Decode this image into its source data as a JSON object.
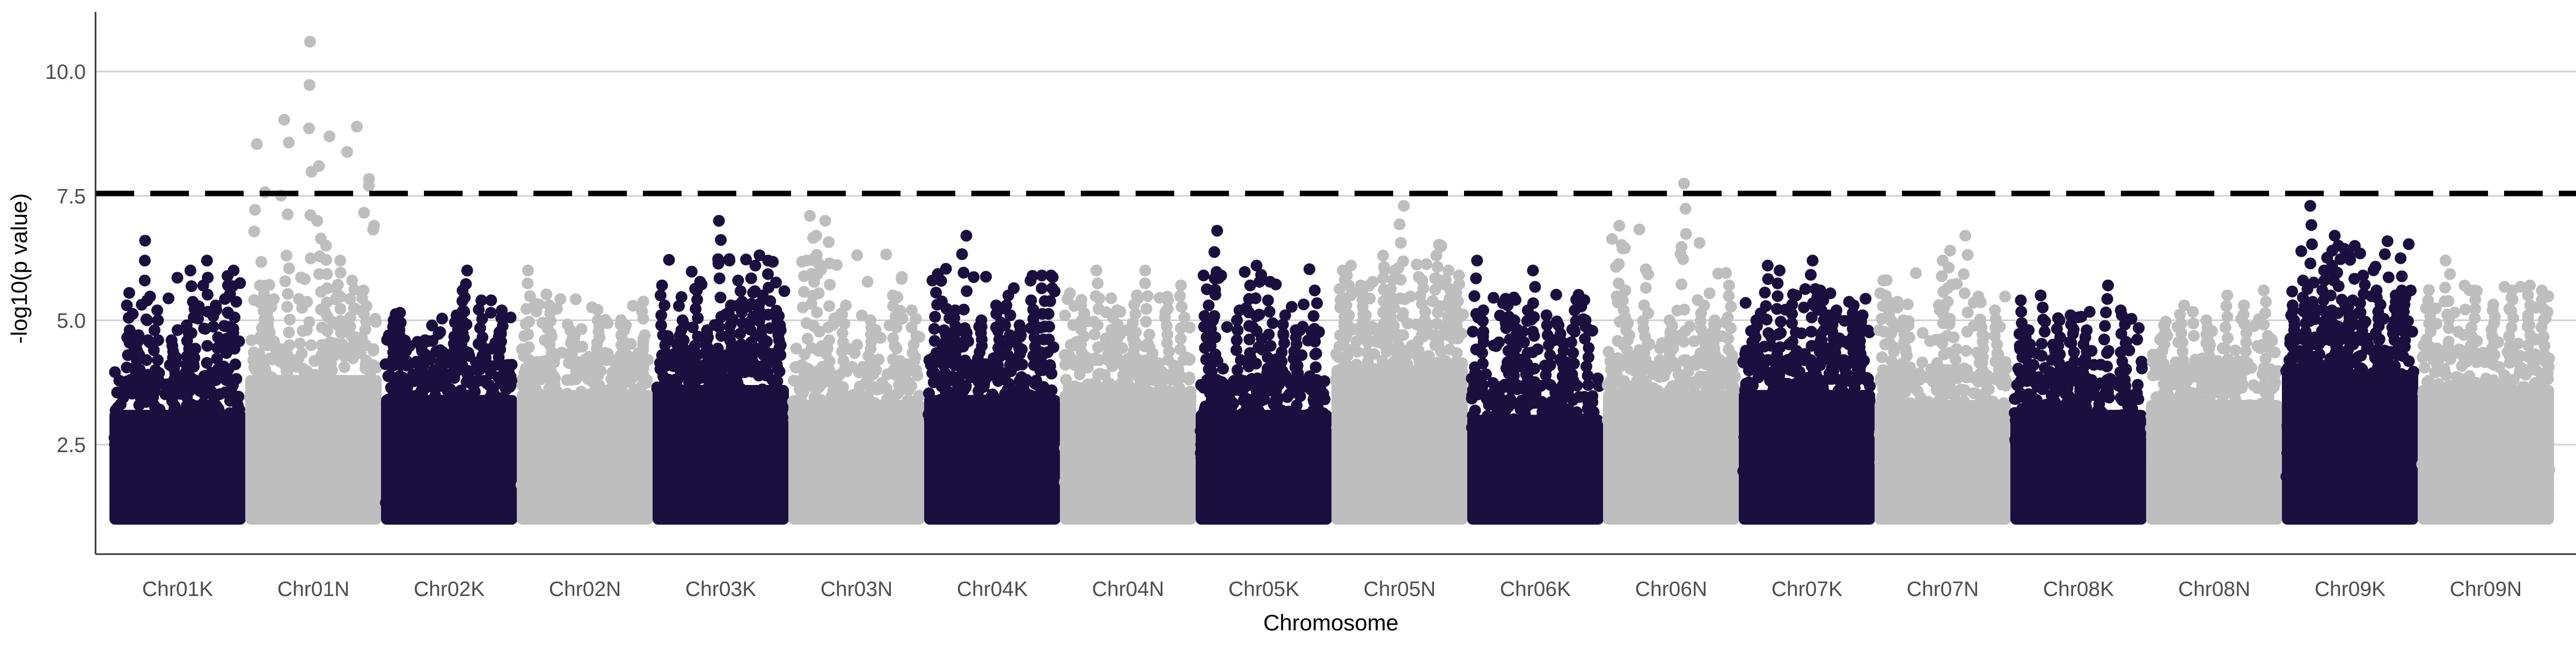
{
  "chart_data": {
    "type": "scatter",
    "subtype": "manhattan",
    "xlabel": "Chromosome",
    "ylabel": "-log10(p value)",
    "ylim": [
      0.3,
      11.2
    ],
    "yticks": [
      2.5,
      5.0,
      7.5,
      10.0
    ],
    "ytick_labels": [
      "2.5",
      "5.0",
      "7.5",
      "10.0"
    ],
    "categories": [
      "Chr01K",
      "Chr01N",
      "Chr02K",
      "Chr02N",
      "Chr03K",
      "Chr03N",
      "Chr04K",
      "Chr04N",
      "Chr05K",
      "Chr05N",
      "Chr06K",
      "Chr06N",
      "Chr07K",
      "Chr07N",
      "Chr08K",
      "Chr08N",
      "Chr09K",
      "Chr09N"
    ],
    "threshold": 7.55,
    "grid": "horizontal major",
    "legend": "none",
    "colors": {
      "K": "#1b0f40",
      "N": "#bebebe",
      "threshold": "#000000",
      "grid": "#d0d0d0"
    },
    "series": [
      {
        "chromosome": "Chr01K",
        "color": "K",
        "dense_top": 3.8,
        "max": 6.6,
        "peaks": [
          [
            0.12,
            5.55
          ],
          [
            0.18,
            4.7
          ],
          [
            0.25,
            6.6
          ],
          [
            0.33,
            5.2
          ],
          [
            0.47,
            4.6
          ],
          [
            0.58,
            4.9
          ],
          [
            0.62,
            6.0
          ],
          [
            0.72,
            6.2
          ],
          [
            0.8,
            5.3
          ],
          [
            0.88,
            5.7
          ],
          [
            0.95,
            6.0
          ]
        ]
      },
      {
        "chromosome": "Chr01N",
        "color": "N",
        "dense_top": 4.5,
        "max": 10.6,
        "peaks": [
          [
            0.1,
            5.7
          ],
          [
            0.15,
            5.4
          ],
          [
            0.3,
            6.3
          ],
          [
            0.47,
            10.6
          ],
          [
            0.55,
            7.0
          ],
          [
            0.6,
            6.5
          ],
          [
            0.7,
            6.2
          ],
          [
            0.8,
            5.8
          ],
          [
            0.9,
            5.6
          ]
        ]
      },
      {
        "chromosome": "Chr02K",
        "color": "K",
        "dense_top": 4.1,
        "max": 6.0,
        "peaks": [
          [
            0.05,
            5.0
          ],
          [
            0.12,
            4.8
          ],
          [
            0.3,
            4.6
          ],
          [
            0.45,
            4.4
          ],
          [
            0.55,
            5.1
          ],
          [
            0.6,
            5.6
          ],
          [
            0.62,
            6.0
          ],
          [
            0.75,
            5.4
          ],
          [
            0.9,
            5.2
          ]
        ]
      },
      {
        "chromosome": "Chr02N",
        "color": "N",
        "dense_top": 4.2,
        "max": 6.0,
        "peaks": [
          [
            0.05,
            6.0
          ],
          [
            0.22,
            5.3
          ],
          [
            0.4,
            4.8
          ],
          [
            0.6,
            5.0
          ],
          [
            0.8,
            4.9
          ],
          [
            0.95,
            4.7
          ]
        ]
      },
      {
        "chromosome": "Chr03K",
        "color": "K",
        "dense_top": 4.3,
        "max": 7.0,
        "peaks": [
          [
            0.05,
            5.7
          ],
          [
            0.2,
            5.0
          ],
          [
            0.3,
            5.6
          ],
          [
            0.38,
            4.8
          ],
          [
            0.5,
            7.0
          ],
          [
            0.58,
            5.3
          ],
          [
            0.65,
            5.8
          ],
          [
            0.75,
            6.1
          ],
          [
            0.82,
            5.5
          ],
          [
            0.88,
            6.2
          ],
          [
            0.95,
            5.0
          ]
        ]
      },
      {
        "chromosome": "Chr03N",
        "color": "N",
        "dense_top": 4.0,
        "max": 7.1,
        "peaks": [
          [
            0.1,
            6.2
          ],
          [
            0.15,
            7.1
          ],
          [
            0.2,
            6.7
          ],
          [
            0.27,
            7.0
          ],
          [
            0.4,
            5.3
          ],
          [
            0.6,
            5.0
          ],
          [
            0.8,
            5.5
          ],
          [
            0.95,
            5.2
          ]
        ]
      },
      {
        "chromosome": "Chr04K",
        "color": "K",
        "dense_top": 4.1,
        "max": 6.7,
        "peaks": [
          [
            0.05,
            5.8
          ],
          [
            0.12,
            4.8
          ],
          [
            0.2,
            5.2
          ],
          [
            0.28,
            6.7
          ],
          [
            0.4,
            5.0
          ],
          [
            0.55,
            5.3
          ],
          [
            0.62,
            5.5
          ],
          [
            0.7,
            4.9
          ],
          [
            0.82,
            5.4
          ],
          [
            0.9,
            5.9
          ],
          [
            0.95,
            5.9
          ]
        ]
      },
      {
        "chromosome": "Chr04N",
        "color": "N",
        "dense_top": 4.2,
        "max": 6.0,
        "peaks": [
          [
            0.15,
            5.3
          ],
          [
            0.25,
            6.0
          ],
          [
            0.4,
            5.2
          ],
          [
            0.55,
            5.5
          ],
          [
            0.65,
            6.0
          ],
          [
            0.8,
            5.4
          ],
          [
            0.92,
            5.7
          ]
        ]
      },
      {
        "chromosome": "Chr05K",
        "color": "K",
        "dense_top": 3.8,
        "max": 6.8,
        "peaks": [
          [
            0.05,
            5.3
          ],
          [
            0.1,
            5.0
          ],
          [
            0.12,
            6.8
          ],
          [
            0.3,
            5.2
          ],
          [
            0.4,
            5.7
          ],
          [
            0.45,
            6.1
          ],
          [
            0.55,
            5.4
          ],
          [
            0.65,
            5.1
          ],
          [
            0.75,
            4.8
          ],
          [
            0.9,
            5.6
          ]
        ]
      },
      {
        "chromosome": "Chr05N",
        "color": "N",
        "dense_top": 4.7,
        "max": 7.3,
        "peaks": [
          [
            0.05,
            6.0
          ],
          [
            0.1,
            6.1
          ],
          [
            0.2,
            5.7
          ],
          [
            0.38,
            6.3
          ],
          [
            0.45,
            6.0
          ],
          [
            0.52,
            7.3
          ],
          [
            0.68,
            5.8
          ],
          [
            0.78,
            6.3
          ],
          [
            0.88,
            6.0
          ],
          [
            0.95,
            5.9
          ]
        ]
      },
      {
        "chromosome": "Chr06K",
        "color": "K",
        "dense_top": 3.7,
        "max": 6.2,
        "peaks": [
          [
            0.03,
            6.2
          ],
          [
            0.1,
            5.2
          ],
          [
            0.28,
            5.3
          ],
          [
            0.35,
            5.0
          ],
          [
            0.42,
            5.2
          ],
          [
            0.48,
            6.0
          ],
          [
            0.6,
            5.1
          ],
          [
            0.7,
            4.9
          ],
          [
            0.8,
            5.2
          ],
          [
            0.9,
            5.0
          ]
        ]
      },
      {
        "chromosome": "Chr06N",
        "color": "N",
        "dense_top": 4.2,
        "max": 7.75,
        "peaks": [
          [
            0.1,
            6.9
          ],
          [
            0.14,
            5.6
          ],
          [
            0.3,
            5.3
          ],
          [
            0.5,
            5.0
          ],
          [
            0.6,
            7.75
          ],
          [
            0.75,
            5.3
          ],
          [
            0.85,
            5.0
          ],
          [
            0.95,
            5.7
          ]
        ]
      },
      {
        "chromosome": "Chr07K",
        "color": "K",
        "dense_top": 4.2,
        "max": 6.2,
        "peaks": [
          [
            0.1,
            5.0
          ],
          [
            0.18,
            6.1
          ],
          [
            0.28,
            6.0
          ],
          [
            0.4,
            5.5
          ],
          [
            0.55,
            6.2
          ],
          [
            0.62,
            5.6
          ],
          [
            0.72,
            5.2
          ],
          [
            0.85,
            5.3
          ],
          [
            0.92,
            5.1
          ]
        ]
      },
      {
        "chromosome": "Chr07N",
        "color": "N",
        "dense_top": 4.0,
        "max": 6.7,
        "peaks": [
          [
            0.03,
            5.8
          ],
          [
            0.1,
            5.3
          ],
          [
            0.2,
            5.0
          ],
          [
            0.5,
            6.2
          ],
          [
            0.55,
            6.4
          ],
          [
            0.68,
            6.7
          ],
          [
            0.8,
            5.0
          ],
          [
            0.92,
            5.2
          ]
        ]
      },
      {
        "chromosome": "Chr08K",
        "color": "K",
        "dense_top": 3.8,
        "max": 5.7,
        "peaks": [
          [
            0.04,
            5.4
          ],
          [
            0.1,
            4.8
          ],
          [
            0.22,
            5.5
          ],
          [
            0.35,
            5.0
          ],
          [
            0.45,
            5.1
          ],
          [
            0.55,
            4.8
          ],
          [
            0.72,
            5.7
          ],
          [
            0.85,
            5.1
          ]
        ]
      },
      {
        "chromosome": "Chr08N",
        "color": "N",
        "dense_top": 4.0,
        "max": 5.6,
        "peaks": [
          [
            0.1,
            4.9
          ],
          [
            0.25,
            5.3
          ],
          [
            0.45,
            5.0
          ],
          [
            0.6,
            5.5
          ],
          [
            0.75,
            5.3
          ],
          [
            0.9,
            5.6
          ]
        ]
      },
      {
        "chromosome": "Chr09K",
        "color": "K",
        "dense_top": 4.6,
        "max": 7.3,
        "peaks": [
          [
            0.05,
            5.3
          ],
          [
            0.15,
            5.8
          ],
          [
            0.2,
            7.3
          ],
          [
            0.3,
            6.0
          ],
          [
            0.36,
            6.7
          ],
          [
            0.42,
            6.5
          ],
          [
            0.5,
            5.4
          ],
          [
            0.6,
            5.9
          ],
          [
            0.72,
            5.6
          ],
          [
            0.85,
            5.5
          ],
          [
            0.92,
            5.6
          ]
        ]
      },
      {
        "chromosome": "Chr09N",
        "color": "N",
        "dense_top": 4.3,
        "max": 6.2,
        "peaks": [
          [
            0.05,
            5.4
          ],
          [
            0.2,
            6.2
          ],
          [
            0.4,
            5.6
          ],
          [
            0.55,
            5.2
          ],
          [
            0.7,
            5.6
          ],
          [
            0.85,
            5.7
          ],
          [
            0.95,
            5.6
          ]
        ]
      }
    ]
  }
}
